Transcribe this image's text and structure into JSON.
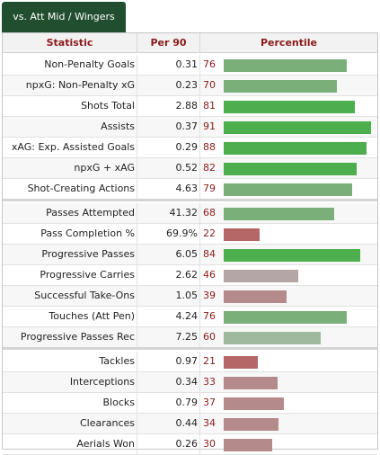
{
  "tab": {
    "label": "vs. Att Mid / Wingers"
  },
  "headers": {
    "statistic": "Statistic",
    "per90": "Per 90",
    "percentile": "Percentile"
  },
  "groups": [
    {
      "rows": [
        {
          "stat": "Non-Penalty Goals",
          "per90": "0.31",
          "percentile": 76
        },
        {
          "stat": "npxG: Non-Penalty xG",
          "per90": "0.23",
          "percentile": 70
        },
        {
          "stat": "Shots Total",
          "per90": "2.88",
          "percentile": 81
        },
        {
          "stat": "Assists",
          "per90": "0.37",
          "percentile": 91
        },
        {
          "stat": "xAG: Exp. Assisted Goals",
          "per90": "0.29",
          "percentile": 88
        },
        {
          "stat": "npxG + xAG",
          "per90": "0.52",
          "percentile": 82
        },
        {
          "stat": "Shot-Creating Actions",
          "per90": "4.63",
          "percentile": 79
        }
      ]
    },
    {
      "rows": [
        {
          "stat": "Passes Attempted",
          "per90": "41.32",
          "percentile": 68
        },
        {
          "stat": "Pass Completion %",
          "per90": "69.9%",
          "percentile": 22
        },
        {
          "stat": "Progressive Passes",
          "per90": "6.05",
          "percentile": 84
        },
        {
          "stat": "Progressive Carries",
          "per90": "2.62",
          "percentile": 46
        },
        {
          "stat": "Successful Take-Ons",
          "per90": "1.05",
          "percentile": 39
        },
        {
          "stat": "Touches (Att Pen)",
          "per90": "4.24",
          "percentile": 76
        },
        {
          "stat": "Progressive Passes Rec",
          "per90": "7.25",
          "percentile": 60
        }
      ]
    },
    {
      "rows": [
        {
          "stat": "Tackles",
          "per90": "0.97",
          "percentile": 21
        },
        {
          "stat": "Interceptions",
          "per90": "0.34",
          "percentile": 33
        },
        {
          "stat": "Blocks",
          "per90": "0.79",
          "percentile": 37
        },
        {
          "stat": "Clearances",
          "per90": "0.44",
          "percentile": 34
        },
        {
          "stat": "Aerials Won",
          "per90": "0.26",
          "percentile": 30
        }
      ]
    }
  ],
  "colors": {
    "tab_bg": "#214e2e",
    "header_text": "#8b1a1a",
    "percentile_text": "#8b1a1a"
  }
}
